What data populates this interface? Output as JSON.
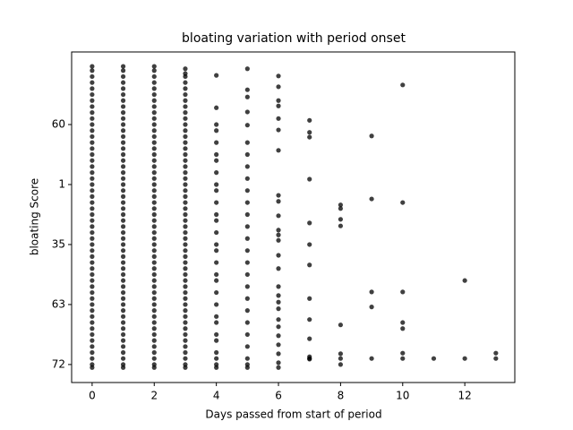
{
  "chart_data": {
    "type": "scatter",
    "title": "bloating variation with period onset",
    "x_label": "Days passed from start of period",
    "y_label": "bloating Score",
    "xlim": [
      -0.66,
      13.61
    ],
    "ylim": [
      -0.3,
      5.21
    ],
    "xticks": [
      0,
      2,
      4,
      6,
      8,
      10,
      12
    ],
    "yticks": [
      {
        "value": 0,
        "label": "72"
      },
      {
        "value": 1,
        "label": "63"
      },
      {
        "value": 2,
        "label": "35"
      },
      {
        "value": 3,
        "label": "1"
      },
      {
        "value": 4,
        "label": "60"
      }
    ],
    "color": "#000000",
    "x": [
      0,
      0,
      0,
      0,
      0,
      0,
      0,
      0,
      0,
      0,
      0,
      0,
      0,
      0,
      0,
      0,
      0,
      0,
      0,
      0,
      0,
      0,
      0,
      0,
      0,
      0,
      0,
      0,
      0,
      0,
      0,
      0,
      0,
      0,
      0,
      0,
      0,
      0,
      0,
      0,
      0,
      0,
      0,
      0,
      0,
      0,
      0,
      0,
      0,
      0,
      0,
      0,
      1,
      1,
      1,
      1,
      1,
      1,
      1,
      1,
      1,
      1,
      1,
      1,
      1,
      1,
      1,
      1,
      1,
      1,
      1,
      1,
      1,
      1,
      1,
      1,
      1,
      1,
      1,
      1,
      1,
      1,
      1,
      1,
      1,
      1,
      1,
      1,
      1,
      1,
      1,
      1,
      1,
      1,
      1,
      1,
      1,
      1,
      1,
      1,
      1,
      1,
      1,
      1,
      2,
      2,
      2,
      2,
      2,
      2,
      2,
      2,
      2,
      2,
      2,
      2,
      2,
      2,
      2,
      2,
      2,
      2,
      2,
      2,
      2,
      2,
      2,
      2,
      2,
      2,
      2,
      2,
      2,
      2,
      2,
      2,
      2,
      2,
      2,
      2,
      2,
      2,
      2,
      2,
      2,
      2,
      2,
      2,
      2,
      2,
      2,
      2,
      2,
      2,
      2,
      2,
      3,
      3,
      3,
      3,
      3,
      3,
      3,
      3,
      3,
      3,
      3,
      3,
      3,
      3,
      3,
      3,
      3,
      3,
      3,
      3,
      3,
      3,
      3,
      3,
      3,
      3,
      3,
      3,
      3,
      3,
      3,
      3,
      3,
      3,
      3,
      3,
      3,
      3,
      3,
      3,
      3,
      3,
      3,
      3,
      3,
      3,
      3,
      3,
      3,
      3,
      3,
      3,
      4,
      4,
      4,
      4,
      4,
      4,
      4,
      4,
      4,
      4,
      4,
      4,
      4,
      4,
      4,
      4,
      4,
      4,
      4,
      4,
      4,
      4,
      4,
      4,
      4,
      4,
      4,
      4,
      4,
      5,
      5,
      5,
      5,
      5,
      5,
      5,
      5,
      5,
      5,
      5,
      5,
      5,
      5,
      5,
      5,
      5,
      5,
      5,
      5,
      5,
      5,
      5,
      5,
      5,
      5,
      6,
      6,
      6,
      6,
      6,
      6,
      6,
      6,
      6,
      6,
      6,
      6,
      6,
      6,
      6,
      6,
      6,
      6,
      6,
      6,
      6,
      6,
      6,
      6,
      6,
      6,
      7,
      7,
      7,
      7,
      7,
      7,
      7,
      7,
      7,
      7,
      7,
      7,
      7,
      8,
      8,
      8,
      8,
      8,
      8,
      8,
      8,
      9,
      9,
      9,
      9,
      9,
      10,
      10,
      10,
      10,
      10,
      10,
      10,
      11,
      12,
      12,
      13,
      13
    ],
    "values": [
      -0.05,
      0,
      0.1,
      0.2,
      0.3,
      0.4,
      0.5,
      0.6,
      0.7,
      0.8,
      0.9,
      1.0,
      1.1,
      1.2,
      1.3,
      1.4,
      1.5,
      1.6,
      1.7,
      1.8,
      1.9,
      2.0,
      2.1,
      2.2,
      2.3,
      2.4,
      2.5,
      2.6,
      2.7,
      2.8,
      2.9,
      3.0,
      3.1,
      3.2,
      3.3,
      3.4,
      3.5,
      3.6,
      3.7,
      3.8,
      3.9,
      4.0,
      4.1,
      4.2,
      4.3,
      4.4,
      4.5,
      4.6,
      4.7,
      4.8,
      4.9,
      4.97,
      -0.05,
      0,
      0.1,
      0.2,
      0.3,
      0.4,
      0.5,
      0.6,
      0.7,
      0.8,
      0.9,
      1.0,
      1.1,
      1.2,
      1.3,
      1.4,
      1.5,
      1.6,
      1.7,
      1.8,
      1.9,
      2.0,
      2.1,
      2.2,
      2.3,
      2.4,
      2.5,
      2.6,
      2.7,
      2.8,
      2.9,
      3.0,
      3.1,
      3.2,
      3.3,
      3.4,
      3.5,
      3.6,
      3.7,
      3.8,
      3.9,
      4.0,
      4.1,
      4.2,
      4.3,
      4.4,
      4.5,
      4.6,
      4.7,
      4.8,
      4.9,
      4.97,
      -0.05,
      0,
      0.1,
      0.2,
      0.3,
      0.4,
      0.5,
      0.6,
      0.7,
      0.8,
      0.9,
      1.0,
      1.1,
      1.2,
      1.3,
      1.4,
      1.5,
      1.6,
      1.7,
      1.8,
      1.9,
      2.0,
      2.1,
      2.2,
      2.3,
      2.4,
      2.5,
      2.6,
      2.7,
      2.8,
      2.9,
      3.0,
      3.1,
      3.2,
      3.3,
      3.4,
      3.5,
      3.6,
      3.7,
      3.8,
      3.9,
      4.0,
      4.1,
      4.2,
      4.3,
      4.4,
      4.5,
      4.6,
      4.7,
      4.8,
      4.9,
      4.97,
      -0.05,
      0,
      0.1,
      0.2,
      0.3,
      0.4,
      0.5,
      0.6,
      0.7,
      0.8,
      0.9,
      1.0,
      1.1,
      1.2,
      1.3,
      1.4,
      1.5,
      1.6,
      1.7,
      1.8,
      1.9,
      2.0,
      2.1,
      2.2,
      2.3,
      2.4,
      2.5,
      2.6,
      2.7,
      2.8,
      2.9,
      3.0,
      3.1,
      3.2,
      3.3,
      3.4,
      3.5,
      3.6,
      3.7,
      3.8,
      3.9,
      4.0,
      4.1,
      4.2,
      4.3,
      4.4,
      4.5,
      4.6,
      4.7,
      4.8,
      4.85,
      4.93,
      -0.05,
      0,
      0.1,
      0.2,
      0.4,
      0.5,
      0.7,
      0.8,
      1.0,
      1.2,
      1.4,
      1.5,
      1.7,
      1.9,
      2.0,
      2.2,
      2.4,
      2.5,
      2.7,
      2.9,
      3.0,
      3.2,
      3.4,
      3.5,
      3.7,
      3.9,
      4.0,
      4.28,
      4.82,
      -0.05,
      0,
      0.1,
      0.3,
      0.5,
      0.7,
      0.9,
      1.1,
      1.3,
      1.5,
      1.7,
      1.9,
      2.1,
      2.3,
      2.5,
      2.7,
      2.9,
      3.1,
      3.3,
      3.5,
      3.7,
      3.99,
      4.21,
      4.46,
      4.58,
      4.93,
      4.81,
      4.63,
      4.4,
      4.31,
      4.1,
      3.91,
      3.57,
      2.82,
      2.72,
      2.48,
      2.24,
      2.16,
      2.07,
      1.82,
      1.6,
      1.3,
      1.15,
      1.04,
      0.93,
      0.75,
      0.63,
      0.48,
      0.33,
      0.18,
      0.03,
      -0.05,
      4.07,
      3.87,
      3.79,
      3.09,
      2.36,
      2.0,
      1.66,
      1.1,
      0.75,
      0.43,
      0.13,
      0.1,
      0.09,
      2.66,
      2.6,
      2.42,
      2.31,
      0.66,
      0.18,
      0.1,
      0,
      3.81,
      2.76,
      1.21,
      0.96,
      0.1,
      4.66,
      2.7,
      1.21,
      0.7,
      0.6,
      0.19,
      0.1,
      0.1,
      1.4,
      0.1,
      0.19,
      0.1
    ]
  }
}
